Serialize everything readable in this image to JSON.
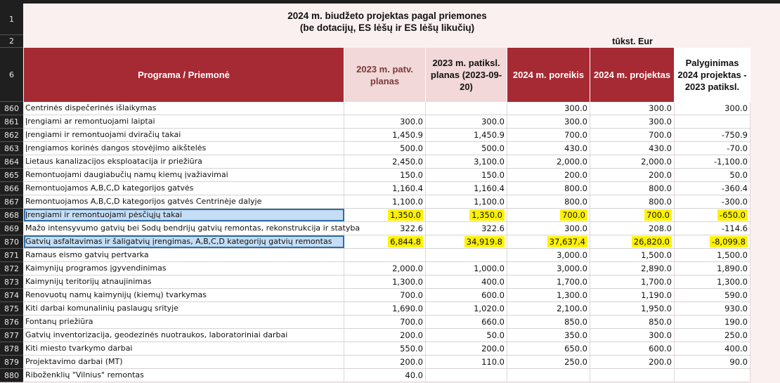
{
  "title": {
    "line1": "2024 m. biudžeto projektas pagal priemones",
    "line2": "(be dotacijų, ES lėšų ir ES lėšų likučių)",
    "unit": "tūkst. Eur"
  },
  "header_rows": [
    "1",
    "2",
    "6"
  ],
  "columns": [
    "Programa / Priemonė",
    "2023 m. patv. planas",
    "2023 m. patiksl. planas (2023-09-20)",
    "2024 m. poreikis",
    "2024 m. projektas",
    "Palyginimas 2024 projektas - 2023 patiksl."
  ],
  "colors": {
    "header_red": "#a52a33",
    "header_pink": "#f2d8d8",
    "highlight_yellow": "#fff200",
    "selection_blue": "#c5def5"
  },
  "rows": [
    {
      "num": "860",
      "name": "Centrinės dispečerinės išlaikymas",
      "v": [
        "",
        "",
        "300.0",
        "300.0",
        "300.0"
      ]
    },
    {
      "num": "861",
      "name": "Įrengiami ar remontuojami laiptai",
      "v": [
        "300.0",
        "300.0",
        "300.0",
        "300.0",
        ""
      ]
    },
    {
      "num": "862",
      "name": "Įrengiami ir remontuojami dviračių takai",
      "v": [
        "1,450.9",
        "1,450.9",
        "700.0",
        "700.0",
        "-750.9"
      ]
    },
    {
      "num": "863",
      "name": "Įrengiamos korinės dangos stovėjimo aikštelės",
      "v": [
        "500.0",
        "500.0",
        "430.0",
        "430.0",
        "-70.0"
      ]
    },
    {
      "num": "864",
      "name": "Lietaus kanalizacijos eksploatacija ir priežiūra",
      "v": [
        "2,450.0",
        "3,100.0",
        "2,000.0",
        "2,000.0",
        "-1,100.0"
      ]
    },
    {
      "num": "865",
      "name": "Remontuojami daugiabučių namų kiemų įvažiavimai",
      "v": [
        "150.0",
        "150.0",
        "200.0",
        "200.0",
        "50.0"
      ]
    },
    {
      "num": "866",
      "name": "Remontuojamos A,B,C,D kategorijos gatvės",
      "v": [
        "1,160.4",
        "1,160.4",
        "800.0",
        "800.0",
        "-360.4"
      ]
    },
    {
      "num": "867",
      "name": "Remontuojamos A,B,C,D kategorijos gatvės Centrinėje dalyje",
      "v": [
        "1,100.0",
        "1,100.0",
        "800.0",
        "800.0",
        "-300.0"
      ]
    },
    {
      "num": "868",
      "name": "Įrengiami ir remontuojami pėsčiųjų takai",
      "v": [
        "1,350.0",
        "1,350.0",
        "700.0",
        "700.0",
        "-650.0"
      ],
      "selected": true,
      "highlighted": true
    },
    {
      "num": "869",
      "name": "Mažo intensyvumo gatvių bei Sodų bendrijų gatvių remontas, rekonstrukcija ir statyba",
      "v": [
        "322.6",
        "322.6",
        "300.0",
        "208.0",
        "-114.6"
      ]
    },
    {
      "num": "870",
      "name": "Gatvių asfaltavimas ir šaligatvių įrengimas, A,B,C,D kategorijų gatvių remontas",
      "v": [
        "6,844.8",
        "34,919.8",
        "37,637.4",
        "26,820.0",
        "-8,099.8"
      ],
      "selected": true,
      "highlighted": true
    },
    {
      "num": "871",
      "name": "Ramaus eismo gatvių pertvarka",
      "v": [
        "",
        "",
        "3,000.0",
        "1,500.0",
        "1,500.0"
      ]
    },
    {
      "num": "872",
      "name": "Kaimynijų programos įgyvendinimas",
      "v": [
        "2,000.0",
        "1,000.0",
        "3,000.0",
        "2,890.0",
        "1,890.0"
      ]
    },
    {
      "num": "873",
      "name": "Kaimynijų teritorijų atnaujinimas",
      "v": [
        "1,300.0",
        "400.0",
        "1,700.0",
        "1,700.0",
        "1,300.0"
      ]
    },
    {
      "num": "874",
      "name": "Renovuotų namų kaimynijų (kiemų) tvarkymas",
      "v": [
        "700.0",
        "600.0",
        "1,300.0",
        "1,190.0",
        "590.0"
      ]
    },
    {
      "num": "875",
      "name": "Kiti darbai komunalinių paslaugų srityje",
      "v": [
        "1,690.0",
        "1,020.0",
        "2,100.0",
        "1,950.0",
        "930.0"
      ]
    },
    {
      "num": "876",
      "name": "Fontanų priežiūra",
      "v": [
        "700.0",
        "660.0",
        "850.0",
        "850.0",
        "190.0"
      ]
    },
    {
      "num": "877",
      "name": "Gatvių inventorizacija, geodezinės nuotraukos, laboratoriniai darbai",
      "v": [
        "200.0",
        "50.0",
        "350.0",
        "300.0",
        "250.0"
      ]
    },
    {
      "num": "878",
      "name": "Kiti miesto tvarkymo darbai",
      "v": [
        "550.0",
        "200.0",
        "650.0",
        "600.0",
        "400.0"
      ]
    },
    {
      "num": "879",
      "name": "Projektavimo darbai (MT)",
      "v": [
        "200.0",
        "110.0",
        "250.0",
        "200.0",
        "90.0"
      ]
    },
    {
      "num": "880",
      "name": "Riboženklių  \"Vilnius\"  remontas",
      "v": [
        "40.0",
        "",
        "",
        "",
        ""
      ]
    }
  ]
}
